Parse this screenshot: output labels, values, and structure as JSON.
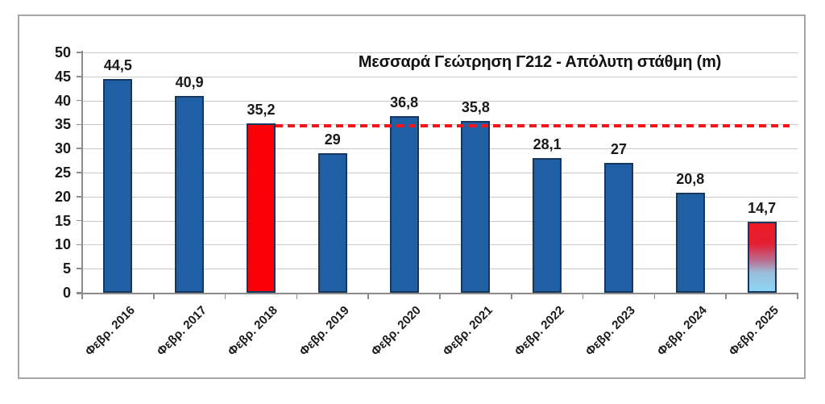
{
  "chart_data": {
    "type": "bar",
    "title": "Μεσσαρά Γεώτρηση  Γ212 - Απόλυτη στάθμη (m)",
    "categories": [
      "Φεβρ. 2016",
      "Φεβρ. 2017",
      "Φεβρ. 2018",
      "Φεβρ. 2019",
      "Φεβρ. 2020",
      "Φεβρ. 2021",
      "Φεβρ. 2022",
      "Φεβρ. 2023",
      "Φεβρ. 2024",
      "Φεβρ. 2025"
    ],
    "values": [
      44.5,
      40.9,
      35.2,
      29,
      36.8,
      35.8,
      28.1,
      27,
      20.8,
      14.7
    ],
    "value_labels": [
      "44,5",
      "40,9",
      "35,2",
      "29",
      "36,8",
      "35,8",
      "28,1",
      "27",
      "20,8",
      "14,7"
    ],
    "ylim": [
      0,
      50
    ],
    "ytick_step": 5,
    "ytick_labels": [
      "0",
      "5",
      "10",
      "15",
      "20",
      "25",
      "30",
      "35",
      "40",
      "45",
      "50"
    ],
    "grid": true,
    "legend_position": "none",
    "bar_default_color": "#1F5FA3",
    "bar_border_color": "#17375E",
    "highlight_bars": [
      {
        "index": 2,
        "color": "#FB0006"
      },
      {
        "index": 9,
        "gradient_stops": [
          "#ED1B24 0%",
          "#E41F33 30%",
          "#BA6E90 55%",
          "#99BEDB 73%",
          "#8FD4F2 100%"
        ]
      }
    ],
    "reference_line": {
      "value": 34.8,
      "color": "#F4141C",
      "style": "dashed",
      "from_category_index": 2
    },
    "palette": {
      "gridline": "#C8C8C8",
      "axis": "#8C8C8C",
      "frame_border": "#A6A6A6",
      "text": "#1A1A1A",
      "background": "#FFFFFF"
    }
  }
}
